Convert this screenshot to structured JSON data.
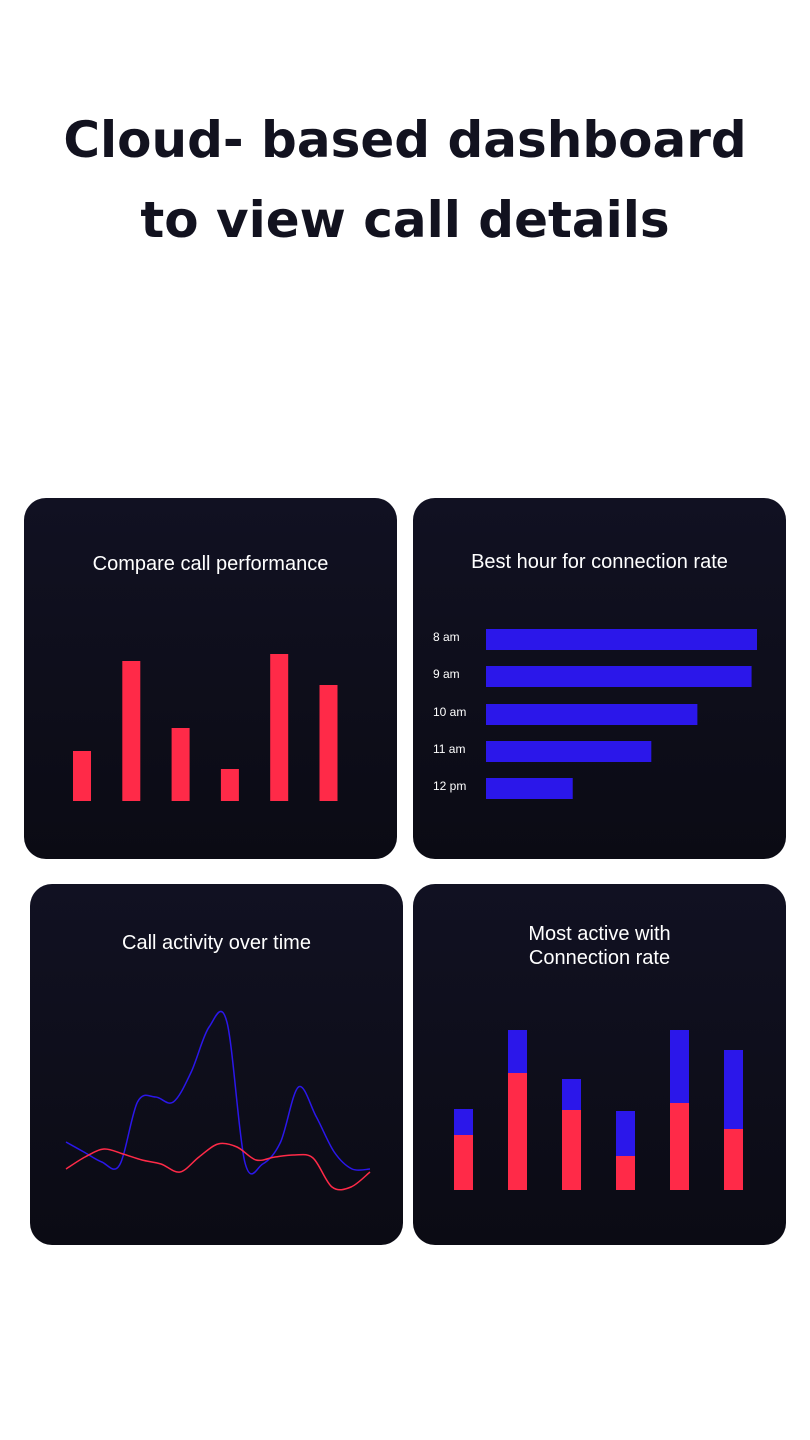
{
  "headline": "Cloud- based dashboard to view call details",
  "colors": {
    "page_bg": "#ffffff",
    "card_bg": "#0f0f1c",
    "red": "#ff2a48",
    "blue": "#2b17ea",
    "text_dark": "#12121f"
  },
  "cards": {
    "performance": {
      "title": "Compare call performance"
    },
    "best_hour": {
      "title": "Best hour for connection rate"
    },
    "activity": {
      "title": "Call activity over time"
    },
    "most_active": {
      "title": "Most active with\nConnection rate"
    }
  },
  "chart_data": [
    {
      "id": "compare-call-performance",
      "type": "bar",
      "title": "Compare call performance",
      "values": [
        50,
        140,
        73,
        32,
        147,
        116
      ],
      "ylim": [
        0,
        160
      ],
      "color": "#ff2a48"
    },
    {
      "id": "best-hour",
      "type": "bar",
      "orientation": "horizontal",
      "title": "Best hour for connection rate",
      "categories": [
        "8 am",
        "9 am",
        "10 am",
        "11 am",
        "12 pm"
      ],
      "values": [
        100,
        98,
        78,
        61,
        32
      ],
      "xlim": [
        0,
        100
      ],
      "color": "#2b17ea"
    },
    {
      "id": "call-activity",
      "type": "line",
      "title": "Call activity over time",
      "ylim": [
        0,
        160
      ],
      "series": [
        {
          "name": "blue",
          "color": "#2b17ea",
          "values": [
            30,
            20,
            10,
            7,
            70,
            75,
            70,
            100,
            145,
            150,
            10,
            8,
            30,
            85,
            55,
            20,
            3,
            3
          ]
        },
        {
          "name": "red",
          "color": "#ff2a48",
          "values": [
            3,
            15,
            23,
            18,
            12,
            8,
            0,
            15,
            28,
            25,
            12,
            15,
            17,
            14,
            -15,
            -15,
            0
          ]
        }
      ]
    },
    {
      "id": "most-active-connection",
      "type": "bar",
      "stacked": true,
      "title": "Most active with Connection rate",
      "ylim": [
        0,
        165
      ],
      "series": [
        {
          "name": "red",
          "color": "#ff2a48",
          "values": [
            55,
            117,
            80,
            34,
            87,
            61
          ]
        },
        {
          "name": "blue",
          "color": "#2b17ea",
          "values": [
            26,
            43,
            31,
            45,
            73,
            79
          ]
        }
      ]
    }
  ]
}
